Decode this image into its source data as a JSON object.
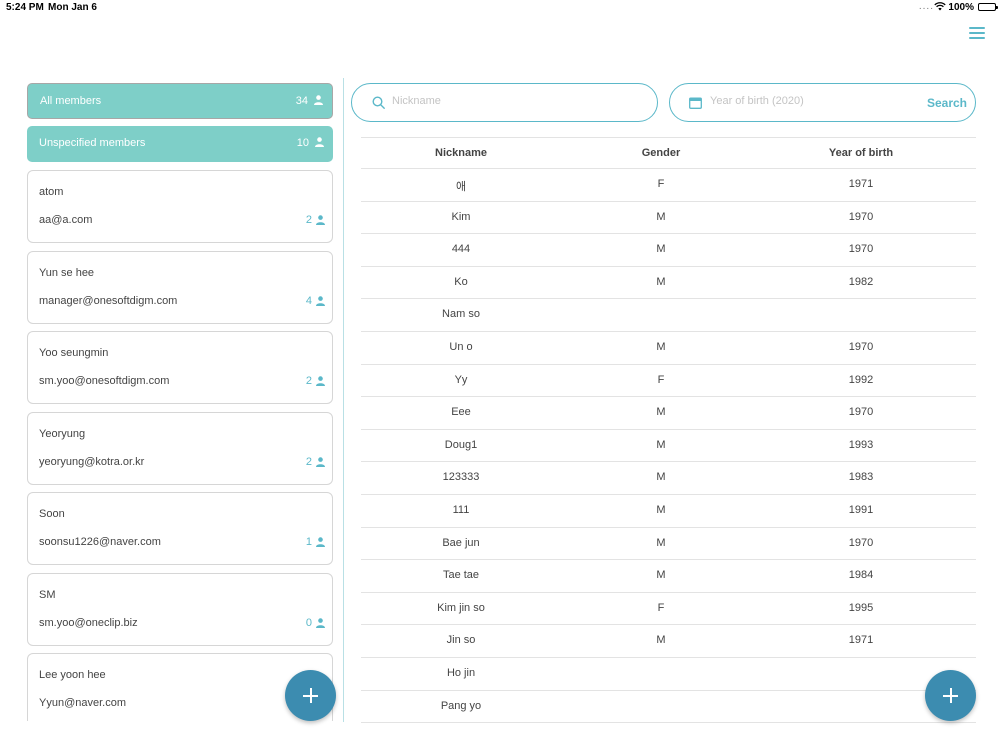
{
  "status_bar": {
    "time": "5:24 PM",
    "date": "Mon Jan 6",
    "signal": "....",
    "battery": "100%"
  },
  "colors": {
    "accent": "#5bb8c9",
    "group_bg": "#7ecfc8",
    "fab": "#3c8cb0"
  },
  "groups": [
    {
      "label": "All members",
      "count": "34",
      "selected": true
    },
    {
      "label": "Unspecified members",
      "count": "10",
      "selected": false
    }
  ],
  "contacts": [
    {
      "name": "atom",
      "email": "aa@a.com",
      "count": "2"
    },
    {
      "name": "Yun se hee",
      "email": "manager@onesoftdigm.com",
      "count": "4"
    },
    {
      "name": "Yoo seungmin",
      "email": "sm.yoo@onesoftdigm.com",
      "count": "2"
    },
    {
      "name": "Yeoryung",
      "email": "yeoryung@kotra.or.kr",
      "count": "2"
    },
    {
      "name": "Soon",
      "email": "soonsu1226@naver.com",
      "count": "1"
    },
    {
      "name": "SM",
      "email": "sm.yoo@oneclip.biz",
      "count": "0"
    },
    {
      "name": "Lee yoon hee",
      "email": "Yyun@naver.com",
      "count": ""
    }
  ],
  "search": {
    "nickname_placeholder": "Nickname",
    "year_placeholder": "Year of birth (2020)",
    "search_label": "Search"
  },
  "table": {
    "headers": [
      "Nickname",
      "Gender",
      "Year of birth"
    ],
    "rows": [
      [
        "애",
        "F",
        "1971"
      ],
      [
        "Kim",
        "M",
        "1970"
      ],
      [
        "444",
        "M",
        "1970"
      ],
      [
        "Ko",
        "M",
        "1982"
      ],
      [
        "Nam so",
        "",
        ""
      ],
      [
        "Un o",
        "M",
        "1970"
      ],
      [
        "Yy",
        "F",
        "1992"
      ],
      [
        "Eee",
        "M",
        "1970"
      ],
      [
        "Doug1",
        "M",
        "1993"
      ],
      [
        "123333",
        "M",
        "1983"
      ],
      [
        "111",
        "M",
        "1991"
      ],
      [
        "Bae jun",
        "M",
        "1970"
      ],
      [
        "Tae tae",
        "M",
        "1984"
      ],
      [
        "Kim jin so",
        "F",
        "1995"
      ],
      [
        "Jin so",
        "M",
        "1971"
      ],
      [
        "Ho jin",
        "",
        ""
      ],
      [
        "Pang yo",
        "",
        ""
      ]
    ]
  },
  "icons": {
    "menu": "hamburger-menu-icon",
    "person": "person-icon",
    "search": "search-icon",
    "calendar": "calendar-icon",
    "add": "plus-icon"
  }
}
